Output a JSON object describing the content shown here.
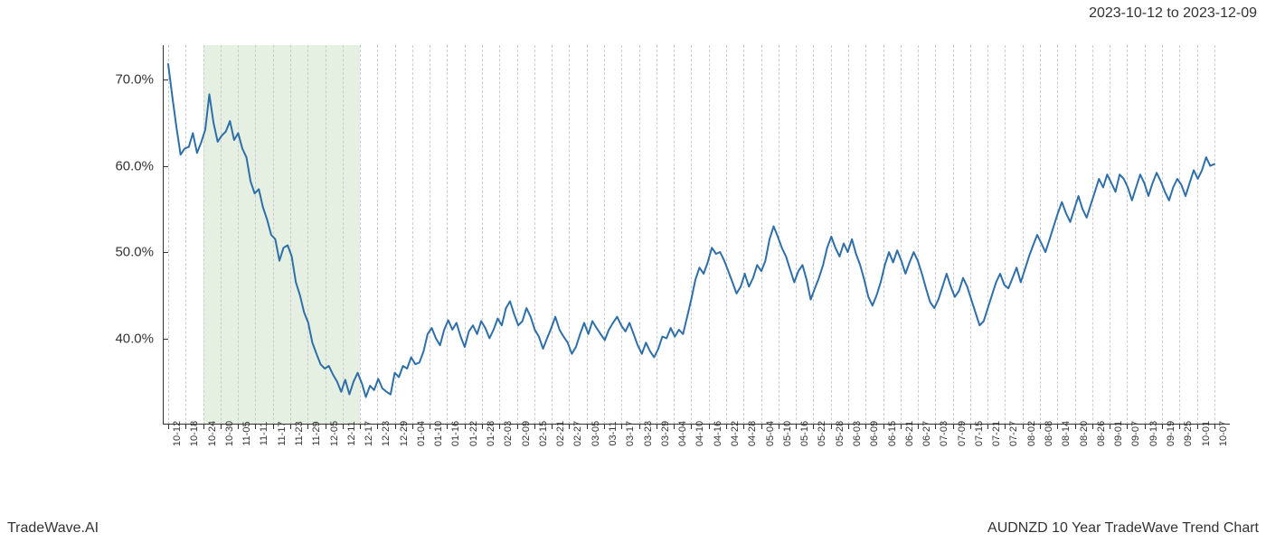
{
  "header": {
    "date_range": "2023-10-12 to 2023-12-09"
  },
  "footer": {
    "left": "TradeWave.AI",
    "right": "AUDNZD 10 Year TradeWave Trend Chart"
  },
  "chart": {
    "type": "line",
    "background_color": "#ffffff",
    "grid_color": "#cccccc",
    "axis_color": "#333333",
    "line_color": "#2f6fa8",
    "line_width": 2,
    "highlight": {
      "fill": "rgba(160,200,150,0.28)",
      "x_start_idx": 2,
      "x_end_idx": 11
    },
    "y_axis": {
      "min": 30,
      "max": 74,
      "ticks": [
        40,
        50,
        60,
        70
      ],
      "tick_labels": [
        "40.0%",
        "50.0%",
        "60.0%",
        "70.0%"
      ],
      "label_fontsize": 15
    },
    "x_axis": {
      "labels": [
        "10-12",
        "10-18",
        "10-24",
        "10-30",
        "11-05",
        "11-11",
        "11-17",
        "11-23",
        "11-29",
        "12-05",
        "12-11",
        "12-17",
        "12-23",
        "12-29",
        "01-04",
        "01-10",
        "01-16",
        "01-22",
        "01-28",
        "02-03",
        "02-09",
        "02-15",
        "02-21",
        "02-27",
        "03-05",
        "03-11",
        "03-17",
        "03-23",
        "03-29",
        "04-04",
        "04-10",
        "04-16",
        "04-22",
        "04-28",
        "05-04",
        "05-10",
        "05-16",
        "05-22",
        "05-28",
        "06-03",
        "06-09",
        "06-15",
        "06-21",
        "06-27",
        "07-03",
        "07-09",
        "07-15",
        "07-21",
        "07-27",
        "08-02",
        "08-08",
        "08-14",
        "08-20",
        "08-26",
        "09-01",
        "09-07",
        "09-13",
        "09-19",
        "09-25",
        "10-01",
        "10-07"
      ],
      "label_fontsize": 11,
      "rotation": -90
    },
    "series": {
      "values": [
        71.8,
        68.0,
        64.5,
        61.3,
        62.0,
        62.2,
        63.8,
        61.5,
        62.7,
        64.2,
        68.3,
        65.0,
        62.8,
        63.5,
        64.0,
        65.2,
        63.0,
        63.8,
        62.0,
        61.0,
        58.2,
        56.8,
        57.3,
        55.2,
        53.8,
        52.0,
        51.5,
        49.0,
        50.5,
        50.8,
        49.5,
        46.5,
        45.0,
        43.0,
        41.8,
        39.5,
        38.2,
        37.0,
        36.5,
        36.8,
        35.8,
        35.0,
        33.8,
        35.2,
        33.5,
        35.0,
        36.0,
        34.8,
        33.2,
        34.5,
        34.0,
        35.3,
        34.2,
        33.8,
        33.5,
        36.0,
        35.5,
        36.8,
        36.5,
        37.8,
        37.0,
        37.2,
        38.5,
        40.5,
        41.2,
        40.0,
        39.2,
        41.0,
        42.1,
        41.0,
        41.8,
        40.2,
        39.0,
        40.8,
        41.5,
        40.5,
        42.0,
        41.2,
        40.0,
        41.0,
        42.3,
        41.5,
        43.5,
        44.3,
        42.8,
        41.5,
        42.0,
        43.5,
        42.5,
        41.0,
        40.2,
        38.8,
        40.0,
        41.2,
        42.5,
        41.0,
        40.2,
        39.5,
        38.2,
        39.0,
        40.5,
        41.8,
        40.5,
        42.0,
        41.2,
        40.5,
        39.8,
        41.0,
        41.8,
        42.5,
        41.5,
        40.8,
        41.8,
        40.5,
        39.2,
        38.2,
        39.5,
        38.5,
        37.8,
        38.8,
        40.2,
        40.0,
        41.2,
        40.2,
        41.0,
        40.5,
        42.5,
        44.5,
        46.8,
        48.2,
        47.5,
        48.8,
        50.5,
        49.8,
        50.0,
        49.0,
        47.8,
        46.5,
        45.2,
        46.0,
        47.5,
        46.0,
        47.0,
        48.5,
        47.8,
        49.0,
        51.5,
        53.0,
        51.8,
        50.5,
        49.5,
        48.0,
        46.5,
        47.8,
        48.5,
        46.8,
        44.5,
        45.8,
        47.0,
        48.5,
        50.5,
        51.8,
        50.5,
        49.5,
        51.0,
        50.0,
        51.5,
        49.8,
        48.5,
        46.8,
        44.8,
        43.8,
        45.0,
        46.5,
        48.5,
        50.0,
        48.8,
        50.2,
        49.0,
        47.5,
        48.8,
        50.0,
        49.0,
        47.5,
        45.8,
        44.2,
        43.5,
        44.5,
        46.0,
        47.5,
        46.0,
        44.8,
        45.5,
        47.0,
        46.0,
        44.5,
        43.0,
        41.5,
        42.0,
        43.5,
        45.0,
        46.5,
        47.5,
        46.2,
        45.8,
        47.0,
        48.2,
        46.5,
        48.0,
        49.5,
        50.8,
        52.0,
        51.0,
        50.0,
        51.5,
        53.0,
        54.5,
        55.8,
        54.5,
        53.5,
        55.0,
        56.5,
        55.0,
        54.0,
        55.5,
        57.0,
        58.5,
        57.5,
        59.0,
        58.0,
        57.0,
        59.0,
        58.5,
        57.5,
        56.0,
        57.5,
        59.0,
        58.0,
        56.5,
        58.0,
        59.2,
        58.2,
        57.0,
        56.0,
        57.5,
        58.5,
        57.8,
        56.5,
        58.0,
        59.5,
        58.5,
        59.5,
        61.0,
        60.0,
        60.2
      ]
    }
  }
}
